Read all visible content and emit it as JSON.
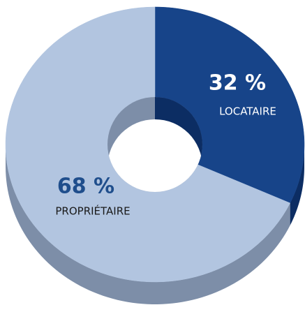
{
  "chart_data": {
    "type": "pie",
    "categories": [
      "LOCATAIRE",
      "PROPRIÉTAIRE"
    ],
    "values": [
      32,
      68
    ],
    "value_labels": [
      "32 %",
      "68 %"
    ],
    "colors": [
      "#174489",
      "#b2c5e0"
    ]
  }
}
